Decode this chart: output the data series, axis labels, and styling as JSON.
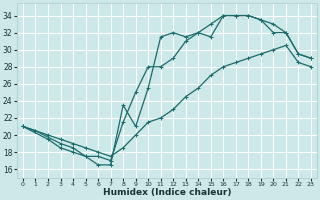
{
  "xlabel": "Humidex (Indice chaleur)",
  "bg_color": "#cce8e8",
  "grid_color": "#ffffff",
  "line_color": "#1a6b6b",
  "xlim": [
    -0.5,
    23.5
  ],
  "ylim": [
    15,
    35.5
  ],
  "yticks": [
    16,
    18,
    20,
    22,
    24,
    26,
    28,
    30,
    32,
    34
  ],
  "xticks": [
    0,
    1,
    2,
    3,
    4,
    5,
    6,
    7,
    8,
    9,
    10,
    11,
    12,
    13,
    14,
    15,
    16,
    17,
    18,
    19,
    20,
    21,
    22,
    23
  ],
  "line1_x": [
    0,
    1,
    2,
    3,
    4,
    5,
    6,
    7,
    8,
    9,
    10,
    11,
    12,
    13,
    14,
    15,
    16,
    17,
    18,
    19,
    20,
    21,
    22,
    23
  ],
  "line1_y": [
    21,
    20.5,
    20,
    19.5,
    19,
    18.5,
    18,
    17.5,
    18.5,
    20,
    21.5,
    22,
    23,
    24.5,
    25.5,
    27,
    28,
    28.5,
    29,
    29.5,
    30,
    30.5,
    28.5,
    28
  ],
  "line2_x": [
    0,
    1,
    3,
    4,
    5,
    6,
    7,
    8,
    9,
    10,
    11,
    12,
    13,
    14,
    15,
    16,
    17,
    18,
    19,
    20,
    21,
    22,
    23
  ],
  "line2_y": [
    21,
    20.5,
    19,
    18.5,
    17.5,
    16.5,
    16.5,
    23.5,
    21,
    25.5,
    31.5,
    32,
    31.5,
    32,
    31.5,
    34,
    34,
    34,
    33.5,
    32,
    32,
    29.5,
    29
  ],
  "line3_x": [
    0,
    2,
    3,
    4,
    5,
    6,
    7,
    8,
    9,
    10,
    11,
    12,
    13,
    14,
    15,
    16,
    17,
    18,
    19,
    20,
    21,
    22,
    23
  ],
  "line3_y": [
    21,
    19.5,
    18.5,
    18,
    17.5,
    17.5,
    17,
    21.5,
    25,
    28,
    28,
    29,
    31,
    32,
    33,
    34,
    34,
    34,
    33.5,
    33,
    32,
    29.5,
    29
  ]
}
